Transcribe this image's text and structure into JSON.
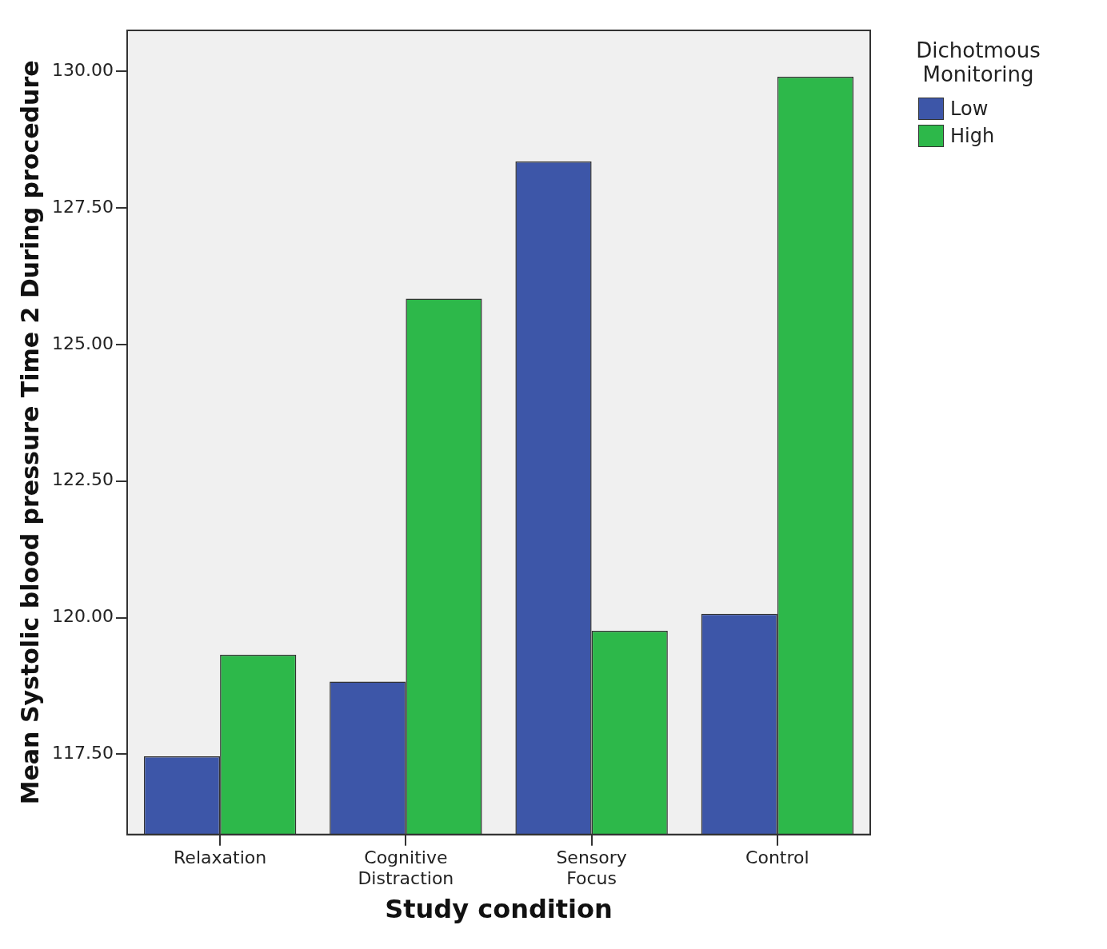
{
  "chart_data": {
    "type": "bar",
    "xlabel": "Study condition",
    "ylabel": "Mean Systolic blood pressure Time 2 During procedure",
    "legend_title": "Dichotmous Monitoring",
    "categories": [
      "Relaxation",
      "Cognitive Distraction",
      "Sensory Focus",
      "Control"
    ],
    "series": [
      {
        "name": "Low",
        "color": "#3d56a8",
        "values": [
          117.46,
          118.83,
          128.35,
          120.07
        ]
      },
      {
        "name": "High",
        "color": "#2db84a",
        "values": [
          119.32,
          125.84,
          119.76,
          129.9
        ]
      }
    ],
    "ylim": [
      116.03,
      130.75
    ],
    "yticks": [
      {
        "value": 117.5,
        "label": "117.50"
      },
      {
        "value": 120,
        "label": "120.00"
      },
      {
        "value": 122.5,
        "label": "122.50"
      },
      {
        "value": 125,
        "label": "125.00"
      },
      {
        "value": 127.5,
        "label": "127.50"
      },
      {
        "value": 130,
        "label": "130.00"
      }
    ],
    "grid": false,
    "legend": "top right"
  }
}
